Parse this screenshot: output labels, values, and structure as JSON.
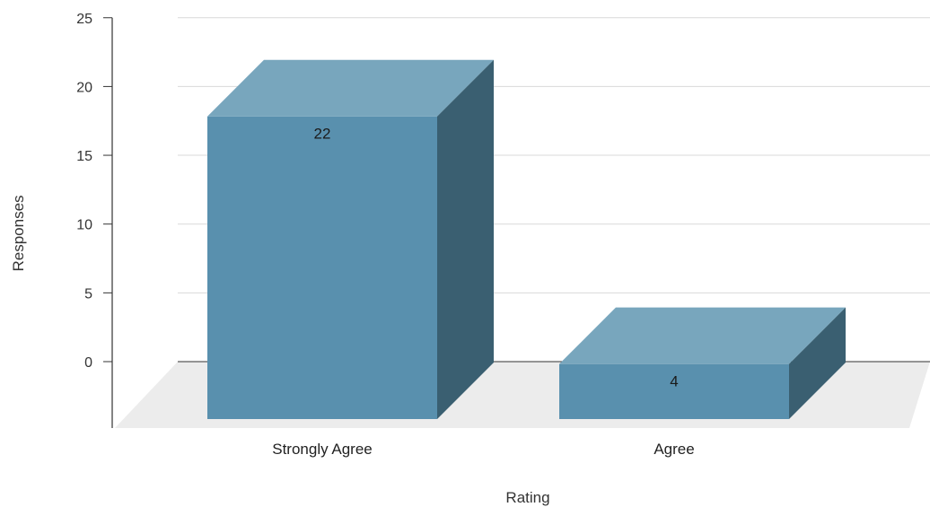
{
  "chart_data": {
    "type": "bar",
    "categories": [
      "Strongly Agree",
      "Agree"
    ],
    "values": [
      22,
      4
    ],
    "data_labels": [
      "22",
      "4"
    ],
    "title": "",
    "xlabel": "Rating",
    "ylabel": "Responses",
    "ylim": [
      0,
      25
    ],
    "yticks": [
      "0",
      "5",
      "10",
      "15",
      "20",
      "25"
    ],
    "grid": true,
    "legend": "none",
    "style": "3d",
    "colors": {
      "bar_front": "#5990ae",
      "bar_top": "#78a6bd",
      "bar_side": "#3a5f71",
      "floor": "#ececec",
      "grid": "#d9d9d9",
      "axis": "#333333"
    }
  }
}
